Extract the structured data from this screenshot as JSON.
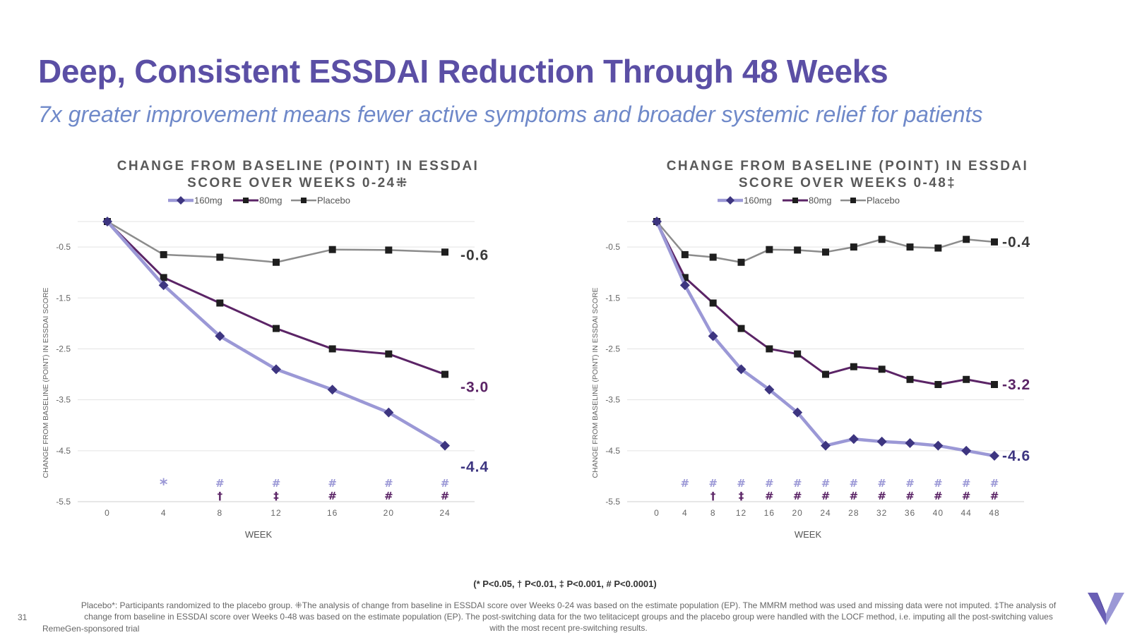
{
  "slide": {
    "title": "Deep, Consistent ESSDAI Reduction Through 48 Weeks",
    "subtitle": "7x greater improvement means fewer active symptoms and broader systemic relief for patients",
    "significance_legend": "(* P<0.05,  † P<0.01,  ‡ P<0.001, # P<0.0001)",
    "footnote": "Placebo*: Participants randomized to the placebo group. ⁜The analysis of change from baseline in ESSDAI score over Weeks 0-24 was based on the estimate population (EP). The MMRM method was used and missing data were not imputed. ‡The analysis of change from baseline in ESSDAI score over Weeks 0-48 was based on the estimate population (EP). The post-switching data for the two telitacicept groups and the placebo group were handled with the LOCF method, i.e. imputing all the post-switching values with the most recent pre-switching results.",
    "page_number": "31",
    "sponsor_note": "RemeGen-sponsored trial",
    "colors": {
      "title": "#5b4fa5",
      "subtitle": "#6f89c9",
      "dose160": "#9b98d6",
      "dose160_marker": "#3d3580",
      "dose80": "#5b2466",
      "placebo": "#8c8c8c"
    }
  },
  "chart_data": [
    {
      "type": "line",
      "title_line1": "CHANGE FROM BASELINE (POINT) IN ESSDAI",
      "title_line2": "SCORE OVER WEEKS 0-24⁜",
      "xlabel": "WEEK",
      "ylabel": "CHANGE FROM BASELINE (POINT) IN ESSDAI SCORE",
      "ylim": [
        -5.5,
        0
      ],
      "yticks": [
        "-0.5",
        "-1.5",
        "-2.5",
        "-3.5",
        "-4.5",
        "-5.5"
      ],
      "x": [
        0,
        4,
        8,
        12,
        16,
        20,
        24
      ],
      "xticks": [
        "0",
        "4",
        "8",
        "12",
        "16",
        "20",
        "24"
      ],
      "legend": [
        "160mg",
        "80mg",
        "Placebo"
      ],
      "series": [
        {
          "name": "160mg",
          "values": [
            0,
            -1.25,
            -2.25,
            -2.9,
            -3.3,
            -3.75,
            -4.4
          ],
          "end_label": "-4.4"
        },
        {
          "name": "80mg",
          "values": [
            0,
            -1.1,
            -1.6,
            -2.1,
            -2.5,
            -2.6,
            -3.0
          ],
          "end_label": "-3.0"
        },
        {
          "name": "Placebo",
          "values": [
            0,
            -0.65,
            -0.7,
            -0.8,
            -0.55,
            -0.56,
            -0.6
          ],
          "end_label": "-0.6"
        }
      ],
      "significance_160": [
        "",
        "*",
        "#",
        "#",
        "#",
        "#",
        "#"
      ],
      "significance_80": [
        "",
        "",
        "†",
        "‡",
        "#",
        "#",
        "#"
      ]
    },
    {
      "type": "line",
      "title_line1": "CHANGE FROM BASELINE (POINT) IN ESSDAI",
      "title_line2": "SCORE OVER WEEKS 0-48‡",
      "xlabel": "WEEK",
      "ylabel": "CHANGE FROM BASELINE (POINT) IN ESSDAI SCORE",
      "ylim": [
        -5.5,
        0
      ],
      "yticks": [
        "-0.5",
        "-1.5",
        "-2.5",
        "-3.5",
        "-4.5",
        "-5.5"
      ],
      "x": [
        0,
        4,
        8,
        12,
        16,
        20,
        24,
        28,
        32,
        36,
        40,
        44,
        48
      ],
      "xticks": [
        "0",
        "4",
        "8",
        "12",
        "16",
        "20",
        "24",
        "28",
        "32",
        "36",
        "40",
        "44",
        "48"
      ],
      "legend": [
        "160mg",
        "80mg",
        "Placebo"
      ],
      "series": [
        {
          "name": "160mg",
          "values": [
            0,
            -1.25,
            -2.25,
            -2.9,
            -3.3,
            -3.75,
            -4.4,
            -4.27,
            -4.32,
            -4.35,
            -4.4,
            -4.5,
            -4.6
          ],
          "end_label": "-4.6"
        },
        {
          "name": "80mg",
          "values": [
            0,
            -1.1,
            -1.6,
            -2.1,
            -2.5,
            -2.6,
            -3.0,
            -2.85,
            -2.9,
            -3.1,
            -3.2,
            -3.1,
            -3.2
          ],
          "end_label": "-3.2"
        },
        {
          "name": "Placebo",
          "values": [
            0,
            -0.65,
            -0.7,
            -0.8,
            -0.55,
            -0.56,
            -0.6,
            -0.5,
            -0.35,
            -0.5,
            -0.52,
            -0.35,
            -0.4
          ],
          "end_label": "-0.4"
        }
      ],
      "significance_160": [
        "",
        "#",
        "#",
        "#",
        "#",
        "#",
        "#",
        "#",
        "#",
        "#",
        "#",
        "#",
        "#"
      ],
      "significance_80": [
        "",
        "",
        "†",
        "‡",
        "#",
        "#",
        "#",
        "#",
        "#",
        "#",
        "#",
        "#",
        "#"
      ]
    }
  ]
}
